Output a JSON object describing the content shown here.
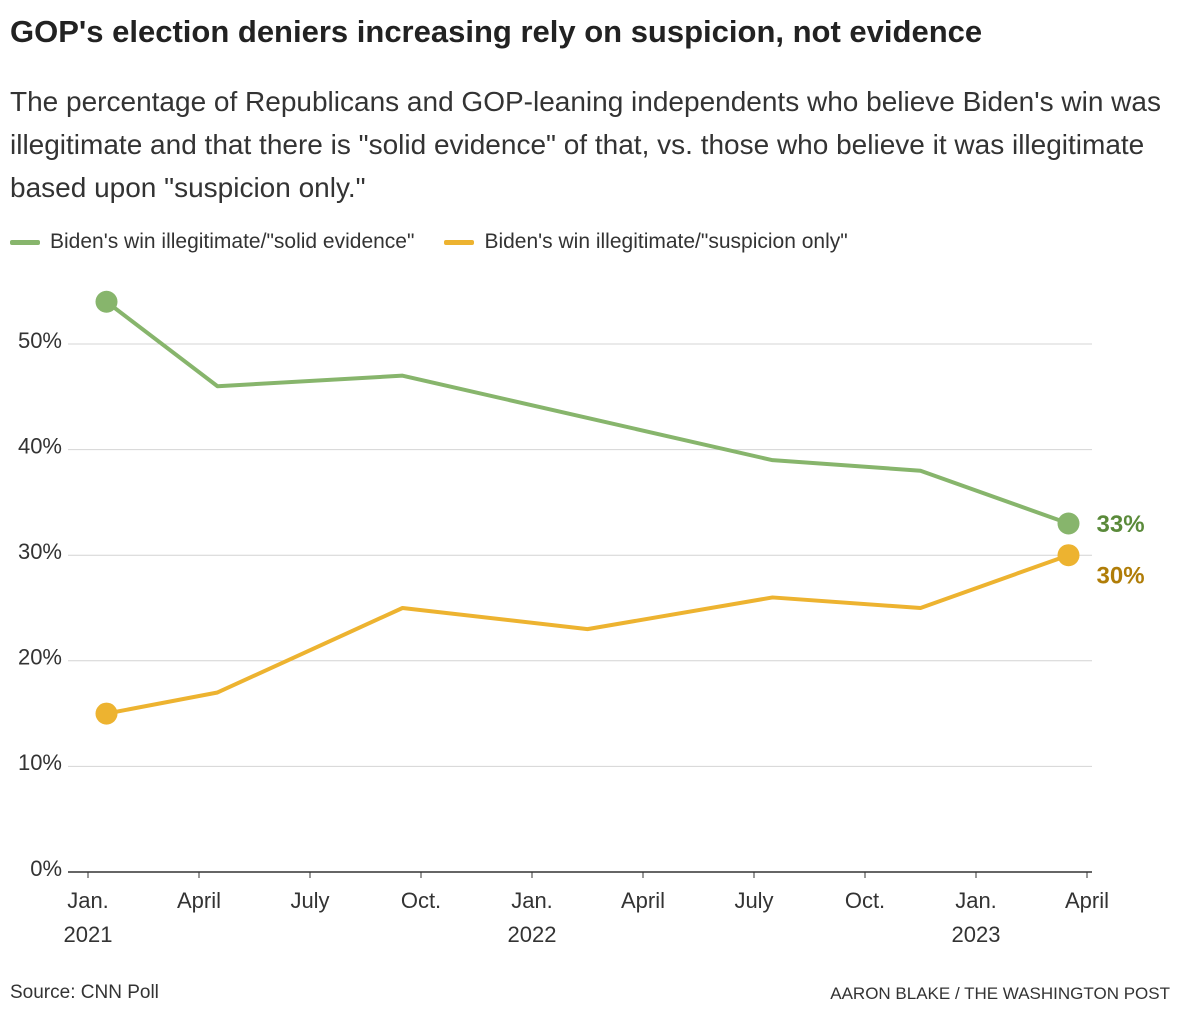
{
  "chart_data": {
    "type": "line",
    "title": "GOP's election deniers increasing rely on suspicion, not evidence",
    "subtitle": "The percentage of Republicans and GOP-leaning independents who believe Biden's win was illegitimate and that there is \"solid evidence\" of that, vs. those who believe it was illegitimate based upon \"suspicion only.\"",
    "x": [
      "2021-01",
      "2021-04",
      "2021-09",
      "2022-02",
      "2022-07",
      "2022-11",
      "2023-03"
    ],
    "series": [
      {
        "name": "Biden's win illegitimate/\"solid evidence\"",
        "color": "#87b56c",
        "label_color": "#5a8a3a",
        "values": [
          54,
          46,
          47,
          43,
          39,
          38,
          33
        ],
        "value_labels": [
          null,
          null,
          null,
          null,
          null,
          null,
          "33%"
        ]
      },
      {
        "name": "Biden's win illegitimate/\"suspicion only\"",
        "color": "#edb330",
        "label_color": "#b07d08",
        "values": [
          15,
          17,
          25,
          23,
          26,
          25,
          30
        ],
        "value_labels": [
          null,
          null,
          null,
          null,
          null,
          null,
          "30%"
        ]
      }
    ],
    "xlim": [
      "2021-01",
      "2023-04"
    ],
    "xticks": [
      {
        "value": "2021-01",
        "label": "Jan. 2021"
      },
      {
        "value": "2021-04",
        "label": "April"
      },
      {
        "value": "2021-07",
        "label": "July"
      },
      {
        "value": "2021-10",
        "label": "Oct."
      },
      {
        "value": "2022-01",
        "label": "Jan. 2022"
      },
      {
        "value": "2022-04",
        "label": "April"
      },
      {
        "value": "2022-07",
        "label": "July"
      },
      {
        "value": "2022-10",
        "label": "Oct."
      },
      {
        "value": "2023-01",
        "label": "Jan. 2023"
      },
      {
        "value": "2023-04",
        "label": "April"
      }
    ],
    "ylim": [
      0,
      55
    ],
    "yticks": [
      {
        "value": 0,
        "label": "0%"
      },
      {
        "value": 10,
        "label": "10%"
      },
      {
        "value": 20,
        "label": "20%"
      },
      {
        "value": 30,
        "label": "30%"
      },
      {
        "value": 40,
        "label": "40%"
      },
      {
        "value": 50,
        "label": "50%"
      }
    ],
    "grid": true,
    "source": "Source: CNN Poll",
    "credit": "AARON BLAKE / THE WASHINGTON POST"
  }
}
